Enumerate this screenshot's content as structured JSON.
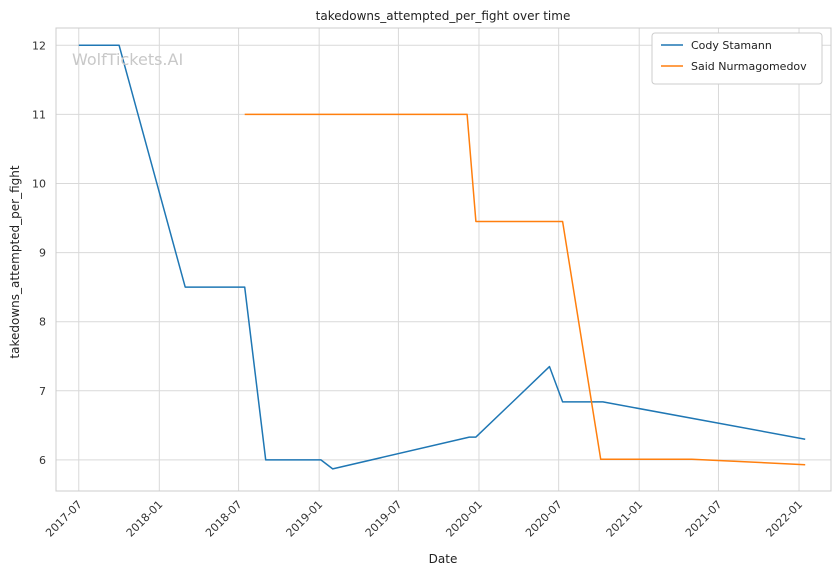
{
  "chart_data": {
    "type": "line",
    "title": "takedowns_attempted_per_fight over time",
    "xlabel": "Date",
    "ylabel": "takedowns_attempted_per_fight",
    "watermark": "WolfTickets.AI",
    "x_ticks": [
      "2017-07",
      "2018-01",
      "2018-07",
      "2019-01",
      "2019-07",
      "2020-01",
      "2020-07",
      "2021-01",
      "2021-07",
      "2022-01"
    ],
    "y_ticks": [
      6,
      7,
      8,
      9,
      10,
      11,
      12
    ],
    "xlim": [
      "2017-05-10",
      "2022-03-15"
    ],
    "ylim": [
      5.55,
      12.25
    ],
    "grid": true,
    "legend_position": "top-right",
    "series": [
      {
        "name": "Cody Stamann",
        "color": "#1f77b4",
        "points": [
          {
            "x": "2017-07-01",
            "y": 12.0
          },
          {
            "x": "2017-10-01",
            "y": 12.0
          },
          {
            "x": "2018-03-01",
            "y": 8.5
          },
          {
            "x": "2018-07-15",
            "y": 8.5
          },
          {
            "x": "2018-09-01",
            "y": 6.0
          },
          {
            "x": "2019-01-05",
            "y": 6.0
          },
          {
            "x": "2019-02-01",
            "y": 5.87
          },
          {
            "x": "2019-12-10",
            "y": 6.33
          },
          {
            "x": "2019-12-25",
            "y": 6.33
          },
          {
            "x": "2020-06-10",
            "y": 7.35
          },
          {
            "x": "2020-07-10",
            "y": 6.84
          },
          {
            "x": "2020-10-10",
            "y": 6.84
          },
          {
            "x": "2022-01-15",
            "y": 6.3
          }
        ]
      },
      {
        "name": "Said Nurmagomedov",
        "color": "#ff7f0e",
        "points": [
          {
            "x": "2018-07-15",
            "y": 11.0
          },
          {
            "x": "2019-12-05",
            "y": 11.0
          },
          {
            "x": "2019-12-25",
            "y": 9.45
          },
          {
            "x": "2020-07-10",
            "y": 9.45
          },
          {
            "x": "2020-10-05",
            "y": 6.01
          },
          {
            "x": "2021-05-01",
            "y": 6.01
          },
          {
            "x": "2022-01-15",
            "y": 5.93
          }
        ]
      }
    ]
  }
}
